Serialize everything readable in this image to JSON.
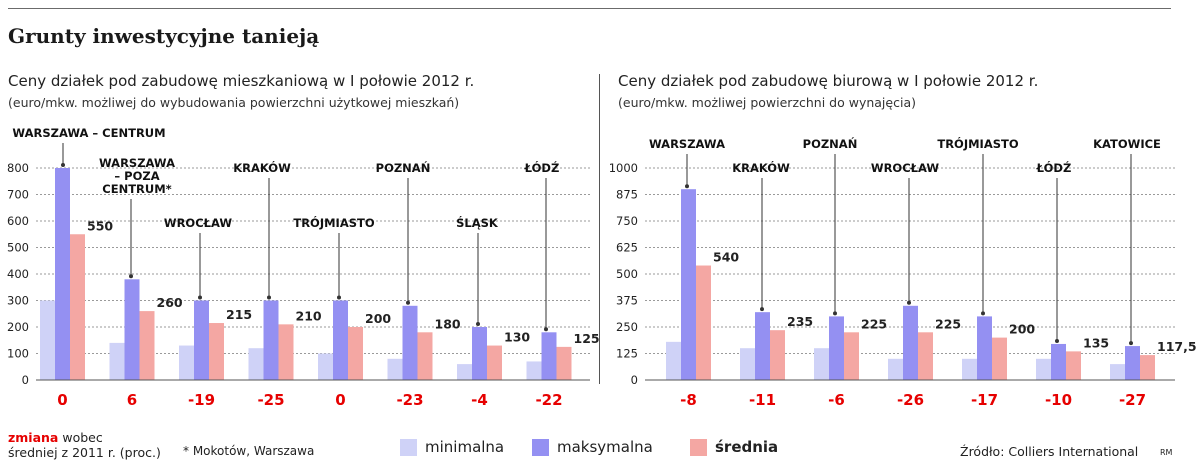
{
  "title": "Grunty inwestycyjne tanieją",
  "colors": {
    "minimalna": "#cfd2f7",
    "maksymalna": "#9490f2",
    "srednia": "#f4a7a3",
    "change": "#e60000"
  },
  "chart_data": [
    {
      "type": "bar",
      "title": "Ceny działek pod zabudowę mieszkaniową w I połowie 2012 r.",
      "units": "(euro/mkw. możliwej do wybudowania powierzchni użytkowej mieszkań)",
      "yticks": [
        "0",
        "100",
        "200",
        "300",
        "400",
        "500",
        "600",
        "700",
        "800"
      ],
      "ylim": [
        0,
        800
      ],
      "grid": true,
      "categories": [
        "WARSZAWA – CENTRUM",
        "WARSZAWA – POZA CENTRUM*",
        "WROCŁAW",
        "KRAKÓW",
        "TRÓJMIASTO",
        "POZNAŃ",
        "ŚLĄSK",
        "ŁÓDŹ"
      ],
      "series": [
        {
          "name": "minimalna",
          "values": [
            300,
            140,
            130,
            120,
            100,
            80,
            60,
            70
          ]
        },
        {
          "name": "maksymalna",
          "values": [
            800,
            380,
            300,
            300,
            300,
            280,
            200,
            180
          ]
        },
        {
          "name": "średnia",
          "values": [
            550,
            260,
            215,
            210,
            200,
            180,
            130,
            125
          ]
        }
      ],
      "value_labels": [
        "550",
        "260",
        "215",
        "210",
        "200",
        "180",
        "130",
        "125"
      ],
      "changes": [
        "0",
        "6",
        "-19",
        "-25",
        "0",
        "-23",
        "-4",
        "-22"
      ]
    },
    {
      "type": "bar",
      "title": "Ceny działek pod zabudowę biurową w I połowie 2012 r.",
      "units": "(euro/mkw. możliwej powierzchni do wynajęcia)",
      "yticks": [
        "0",
        "125",
        "250",
        "375",
        "500",
        "625",
        "750",
        "875",
        "1000"
      ],
      "ylim": [
        0,
        1000
      ],
      "grid": true,
      "categories": [
        "WARSZAWA",
        "KRAKÓW",
        "POZNAŃ",
        "WROCŁAW",
        "TRÓJMIASTO",
        "ŁÓDŹ",
        "KATOWICE"
      ],
      "series": [
        {
          "name": "minimalna",
          "values": [
            180,
            150,
            150,
            100,
            100,
            100,
            75
          ]
        },
        {
          "name": "maksymalna",
          "values": [
            900,
            320,
            300,
            350,
            300,
            170,
            160
          ]
        },
        {
          "name": "średnia",
          "values": [
            540,
            235,
            225,
            225,
            200,
            135,
            117.5
          ]
        }
      ],
      "value_labels": [
        "540",
        "235",
        "225",
        "225",
        "200",
        "135",
        "117,5"
      ],
      "changes": [
        "-8",
        "-11",
        "-6",
        "-26",
        "-17",
        "-10",
        "-27"
      ]
    }
  ],
  "legend": {
    "minimalna": "minimalna",
    "maksymalna": "maksymalna",
    "srednia": "średnia"
  },
  "notes": {
    "change_red": "zmiana",
    "change_rest": "wobec",
    "change_line2": "średniej z 2011 r. (proc.)",
    "footnote": "* Mokotów, Warszawa",
    "source": "Źródło: Colliers International",
    "credit": "RM"
  }
}
